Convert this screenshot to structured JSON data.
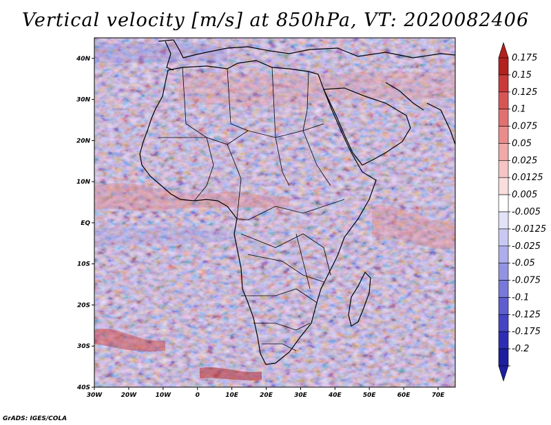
{
  "title": "Vertical velocity [m/s] at 850hPa, VT: 2020082406",
  "credit": "GrADS: IGES/COLA",
  "map": {
    "lat_labels": [
      "40N",
      "30N",
      "20N",
      "10N",
      "EQ",
      "10S",
      "20S",
      "30S",
      "40S"
    ],
    "lon_labels": [
      "30W",
      "20W",
      "10W",
      "0",
      "10E",
      "20E",
      "30E",
      "40E",
      "50E",
      "60E",
      "70E"
    ],
    "lat_range": [
      -40,
      45
    ],
    "lon_range": [
      -30,
      75
    ]
  },
  "colorbar": {
    "levels": [
      "0.175",
      "0.15",
      "0.125",
      "0.1",
      "0.075",
      "0.05",
      "0.025",
      "0.0125",
      "0.005",
      "-0.005",
      "-0.0125",
      "-0.025",
      "-0.05",
      "-0.075",
      "-0.1",
      "-0.125",
      "-0.175",
      "-0.2"
    ],
    "colors": [
      "#b32020",
      "#c93a3a",
      "#d85555",
      "#e27070",
      "#ea8c8c",
      "#f0a8a8",
      "#f6c4c4",
      "#fadede",
      "#ffffff",
      "#e2e2f8",
      "#c8c8f2",
      "#adadec",
      "#9393e4",
      "#7878da",
      "#5e5ed0",
      "#4545c4",
      "#2d2db6",
      "#1e1ea0"
    ]
  }
}
